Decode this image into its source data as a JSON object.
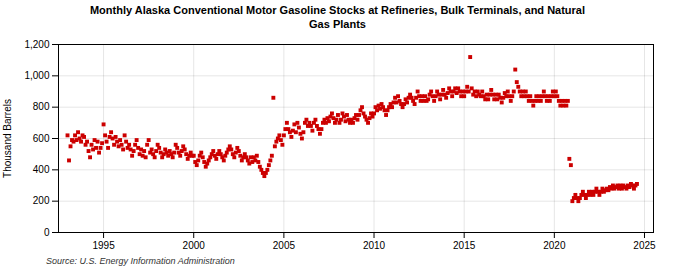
{
  "chart_data": {
    "type": "scatter",
    "title": "Monthly Alaska Conventional Motor Gasoline Stocks at Refineries, Bulk Terminals, and Natural\nGas Plants",
    "ylabel": "Thousand Barrels",
    "source": "Source: U.S. Energy Information Administration",
    "color": "#cc0000",
    "marker": "square",
    "grid": true,
    "xlim": [
      1992.5,
      2025.5
    ],
    "ylim": [
      0,
      1200
    ],
    "xticks": [
      1995,
      2000,
      2005,
      2010,
      2015,
      2020,
      2025
    ],
    "yticks": [
      0,
      200,
      400,
      600,
      800,
      {
        "value": 1000,
        "label": "1,000"
      },
      {
        "value": 1200,
        "label": "1,200"
      }
    ],
    "x": [
      1993,
      1993.083,
      1993.167,
      1993.25,
      1993.333,
      1993.417,
      1993.5,
      1993.583,
      1993.667,
      1993.75,
      1993.833,
      1993.917,
      1994,
      1994.083,
      1994.167,
      1994.25,
      1994.333,
      1994.417,
      1994.5,
      1994.583,
      1994.667,
      1994.75,
      1994.833,
      1994.917,
      1995,
      1995.083,
      1995.167,
      1995.25,
      1995.333,
      1995.417,
      1995.5,
      1995.583,
      1995.667,
      1995.75,
      1995.833,
      1995.917,
      1996,
      1996.083,
      1996.167,
      1996.25,
      1996.333,
      1996.417,
      1996.5,
      1996.583,
      1996.667,
      1996.75,
      1996.833,
      1996.917,
      1997,
      1997.083,
      1997.167,
      1997.25,
      1997.333,
      1997.417,
      1997.5,
      1997.583,
      1997.667,
      1997.75,
      1997.833,
      1997.917,
      1998,
      1998.083,
      1998.167,
      1998.25,
      1998.333,
      1998.417,
      1998.5,
      1998.583,
      1998.667,
      1998.75,
      1998.833,
      1998.917,
      1999,
      1999.083,
      1999.167,
      1999.25,
      1999.333,
      1999.417,
      1999.5,
      1999.583,
      1999.667,
      1999.75,
      1999.833,
      1999.917,
      2000,
      2000.083,
      2000.167,
      2000.25,
      2000.333,
      2000.417,
      2000.5,
      2000.583,
      2000.667,
      2000.75,
      2000.833,
      2000.917,
      2001,
      2001.083,
      2001.167,
      2001.25,
      2001.333,
      2001.417,
      2001.5,
      2001.583,
      2001.667,
      2001.75,
      2001.833,
      2001.917,
      2002,
      2002.083,
      2002.167,
      2002.25,
      2002.333,
      2002.417,
      2002.5,
      2002.583,
      2002.667,
      2002.75,
      2002.833,
      2002.917,
      2003,
      2003.083,
      2003.167,
      2003.25,
      2003.333,
      2003.417,
      2003.5,
      2003.583,
      2003.667,
      2003.75,
      2003.833,
      2003.917,
      2004,
      2004.083,
      2004.167,
      2004.25,
      2004.333,
      2004.417,
      2004.5,
      2004.583,
      2004.667,
      2004.75,
      2004.833,
      2004.917,
      2005,
      2005.083,
      2005.167,
      2005.25,
      2005.333,
      2005.417,
      2005.5,
      2005.583,
      2005.667,
      2005.75,
      2005.833,
      2005.917,
      2006,
      2006.083,
      2006.167,
      2006.25,
      2006.333,
      2006.417,
      2006.5,
      2006.583,
      2006.667,
      2006.75,
      2006.833,
      2006.917,
      2007,
      2007.083,
      2007.167,
      2007.25,
      2007.333,
      2007.417,
      2007.5,
      2007.583,
      2007.667,
      2007.75,
      2007.833,
      2007.917,
      2008,
      2008.083,
      2008.167,
      2008.25,
      2008.333,
      2008.417,
      2008.5,
      2008.583,
      2008.667,
      2008.75,
      2008.833,
      2008.917,
      2009,
      2009.083,
      2009.167,
      2009.25,
      2009.333,
      2009.417,
      2009.5,
      2009.583,
      2009.667,
      2009.75,
      2009.833,
      2009.917,
      2010,
      2010.083,
      2010.167,
      2010.25,
      2010.333,
      2010.417,
      2010.5,
      2010.583,
      2010.667,
      2010.75,
      2010.833,
      2010.917,
      2011,
      2011.083,
      2011.167,
      2011.25,
      2011.333,
      2011.417,
      2011.5,
      2011.583,
      2011.667,
      2011.75,
      2011.833,
      2011.917,
      2012,
      2012.083,
      2012.167,
      2012.25,
      2012.333,
      2012.417,
      2012.5,
      2012.583,
      2012.667,
      2012.75,
      2012.833,
      2012.917,
      2013,
      2013.083,
      2013.167,
      2013.25,
      2013.333,
      2013.417,
      2013.5,
      2013.583,
      2013.667,
      2013.75,
      2013.833,
      2013.917,
      2014,
      2014.083,
      2014.167,
      2014.25,
      2014.333,
      2014.417,
      2014.5,
      2014.583,
      2014.667,
      2014.75,
      2014.833,
      2014.917,
      2015,
      2015.083,
      2015.167,
      2015.25,
      2015.333,
      2015.417,
      2015.5,
      2015.583,
      2015.667,
      2015.75,
      2015.833,
      2015.917,
      2016,
      2016.083,
      2016.167,
      2016.25,
      2016.333,
      2016.417,
      2016.5,
      2016.583,
      2016.667,
      2016.75,
      2016.833,
      2016.917,
      2017,
      2017.083,
      2017.167,
      2017.25,
      2017.333,
      2017.417,
      2017.5,
      2017.583,
      2017.667,
      2017.75,
      2017.833,
      2017.917,
      2018,
      2018.083,
      2018.167,
      2018.25,
      2018.333,
      2018.417,
      2018.5,
      2018.583,
      2018.667,
      2018.75,
      2018.833,
      2018.917,
      2019,
      2019.083,
      2019.167,
      2019.25,
      2019.333,
      2019.417,
      2019.5,
      2019.583,
      2019.667,
      2019.75,
      2019.833,
      2019.917,
      2020,
      2020.083,
      2020.167,
      2020.25,
      2020.333,
      2020.417,
      2020.5,
      2020.583,
      2020.667,
      2020.75,
      2020.833,
      2020.917,
      2021,
      2021.083,
      2021.167,
      2021.25,
      2021.333,
      2021.417,
      2021.5,
      2021.583,
      2021.667,
      2021.75,
      2021.833,
      2021.917,
      2022,
      2022.083,
      2022.167,
      2022.25,
      2022.333,
      2022.417,
      2022.5,
      2022.583,
      2022.667,
      2022.75,
      2022.833,
      2022.917,
      2023,
      2023.083,
      2023.167,
      2023.25,
      2023.333,
      2023.417,
      2023.5,
      2023.583,
      2023.667,
      2023.75,
      2023.833,
      2023.917,
      2024,
      2024.083,
      2024.167,
      2024.25,
      2024.333,
      2024.417,
      2024.5,
      2024.583
    ],
    "values": [
      620,
      460,
      550,
      590,
      580,
      620,
      590,
      640,
      600,
      580,
      620,
      610,
      560,
      580,
      520,
      480,
      560,
      530,
      590,
      540,
      580,
      510,
      540,
      570,
      690,
      620,
      580,
      540,
      610,
      640,
      600,
      560,
      610,
      580,
      550,
      590,
      560,
      530,
      620,
      580,
      540,
      560,
      530,
      490,
      520,
      560,
      590,
      540,
      500,
      530,
      490,
      520,
      480,
      560,
      590,
      510,
      530,
      500,
      480,
      520,
      560,
      540,
      510,
      480,
      500,
      530,
      510,
      490,
      520,
      500,
      480,
      510,
      560,
      540,
      510,
      490,
      520,
      550,
      530,
      500,
      470,
      490,
      510,
      490,
      490,
      450,
      430,
      460,
      490,
      510,
      480,
      450,
      420,
      440,
      460,
      480,
      500,
      520,
      490,
      470,
      500,
      520,
      500,
      480,
      460,
      490,
      510,
      530,
      550,
      530,
      500,
      480,
      510,
      540,
      520,
      490,
      460,
      480,
      500,
      480,
      460,
      440,
      480,
      450,
      480,
      460,
      490,
      450,
      420,
      400,
      380,
      360,
      380,
      400,
      430,
      460,
      490,
      860,
      550,
      580,
      600,
      620,
      590,
      560,
      620,
      660,
      700,
      660,
      640,
      610,
      650,
      690,
      640,
      700,
      670,
      630,
      600,
      640,
      700,
      720,
      680,
      700,
      680,
      650,
      700,
      720,
      680,
      660,
      630,
      660,
      700,
      720,
      700,
      730,
      710,
      740,
      760,
      730,
      700,
      720,
      750,
      700,
      720,
      760,
      740,
      710,
      750,
      720,
      700,
      720,
      700,
      730,
      750,
      720,
      750,
      780,
      800,
      760,
      740,
      720,
      700,
      730,
      760,
      740,
      760,
      800,
      780,
      810,
      790,
      820,
      800,
      780,
      750,
      780,
      800,
      820,
      800,
      830,
      860,
      830,
      870,
      840,
      820,
      800,
      820,
      850,
      830,
      860,
      880,
      860,
      840,
      820,
      860,
      900,
      870,
      840,
      870,
      840,
      870,
      840,
      850,
      880,
      900,
      870,
      840,
      870,
      900,
      880,
      850,
      880,
      910,
      880,
      860,
      890,
      920,
      900,
      870,
      900,
      920,
      890,
      920,
      900,
      870,
      900,
      870,
      900,
      930,
      900,
      1120,
      920,
      880,
      900,
      870,
      900,
      880,
      870,
      900,
      870,
      850,
      880,
      850,
      880,
      910,
      880,
      850,
      880,
      850,
      880,
      860,
      830,
      860,
      890,
      870,
      900,
      870,
      840,
      870,
      900,
      1040,
      960,
      930,
      900,
      870,
      900,
      870,
      900,
      870,
      840,
      870,
      840,
      810,
      840,
      870,
      840,
      870,
      840,
      870,
      900,
      870,
      840,
      870,
      840,
      870,
      900,
      870,
      900,
      870,
      840,
      810,
      840,
      810,
      840,
      810,
      840,
      470,
      430,
      200,
      220,
      240,
      220,
      200,
      220,
      240,
      260,
      240,
      220,
      240,
      260,
      240,
      260,
      240,
      260,
      280,
      260,
      240,
      260,
      280,
      260,
      270,
      280,
      270,
      290,
      280,
      300,
      280,
      290,
      300,
      280,
      300,
      280,
      300,
      290,
      280,
      300,
      290,
      310,
      300,
      280,
      300,
      310
    ]
  }
}
